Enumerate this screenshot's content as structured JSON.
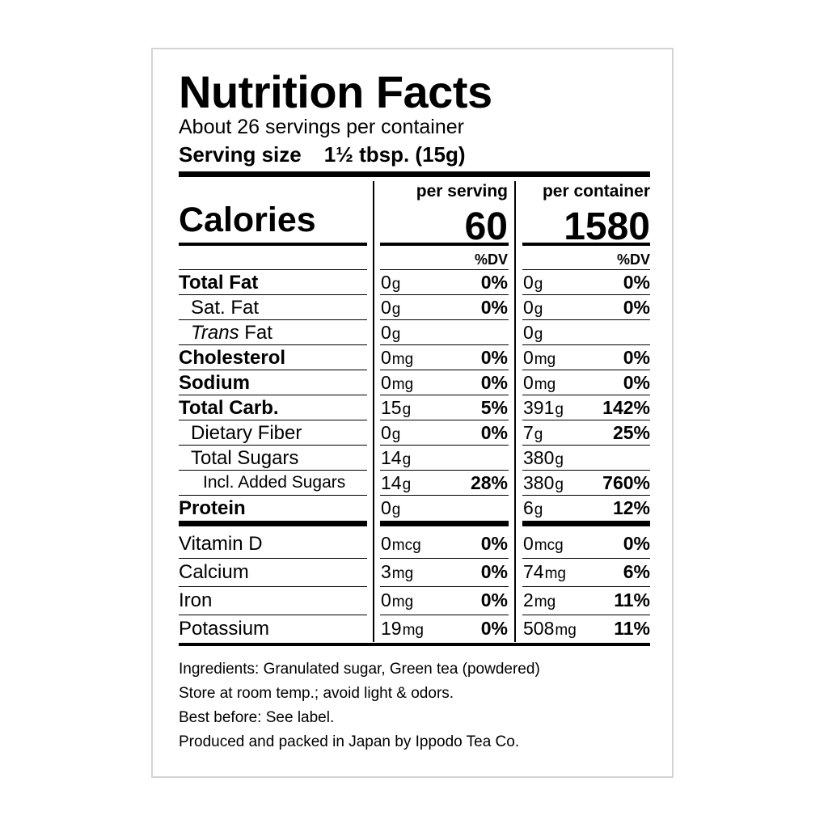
{
  "title": "Nutrition Facts",
  "servings_per_container": "About 26 servings per container",
  "serving_size": {
    "label": "Serving size",
    "value": "1½ tbsp. (15g)"
  },
  "columns": {
    "per_serving": "per serving",
    "per_container": "per container",
    "dv": "%DV"
  },
  "calories": {
    "label": "Calories",
    "per_serving": "60",
    "per_container": "1580"
  },
  "nutrients": [
    {
      "label": "Total Fat",
      "bold": true,
      "indent": 0,
      "s_amt": "0",
      "s_unit": "g",
      "s_pct": "0%",
      "c_amt": "0",
      "c_unit": "g",
      "c_pct": "0%"
    },
    {
      "label": "Sat. Fat",
      "bold": false,
      "indent": 1,
      "s_amt": "0",
      "s_unit": "g",
      "s_pct": "0%",
      "c_amt": "0",
      "c_unit": "g",
      "c_pct": "0%"
    },
    {
      "label_italic": "Trans",
      "label": " Fat",
      "bold": false,
      "indent": 1,
      "s_amt": "0",
      "s_unit": "g",
      "s_pct": "",
      "c_amt": "0",
      "c_unit": "g",
      "c_pct": ""
    },
    {
      "label": "Cholesterol",
      "bold": true,
      "indent": 0,
      "s_amt": "0",
      "s_unit": "mg",
      "s_pct": "0%",
      "c_amt": "0",
      "c_unit": "mg",
      "c_pct": "0%"
    },
    {
      "label": "Sodium",
      "bold": true,
      "indent": 0,
      "s_amt": "0",
      "s_unit": "mg",
      "s_pct": "0%",
      "c_amt": "0",
      "c_unit": "mg",
      "c_pct": "0%"
    },
    {
      "label": "Total Carb.",
      "bold": true,
      "indent": 0,
      "s_amt": "15",
      "s_unit": "g",
      "s_pct": "5%",
      "c_amt": "391",
      "c_unit": "g",
      "c_pct": "142%"
    },
    {
      "label": "Dietary Fiber",
      "bold": false,
      "indent": 1,
      "s_amt": "0",
      "s_unit": "g",
      "s_pct": "0%",
      "c_amt": "7",
      "c_unit": "g",
      "c_pct": "25%"
    },
    {
      "label": "Total Sugars",
      "bold": false,
      "indent": 1,
      "s_amt": "14",
      "s_unit": "g",
      "s_pct": "",
      "c_amt": "380",
      "c_unit": "g",
      "c_pct": ""
    },
    {
      "label": "Incl. Added Sugars",
      "bold": false,
      "indent": 2,
      "s_amt": "14",
      "s_unit": "g",
      "s_pct": "28%",
      "c_amt": "380",
      "c_unit": "g",
      "c_pct": "760%"
    },
    {
      "label": "Protein",
      "bold": true,
      "indent": 0,
      "s_amt": "0",
      "s_unit": "g",
      "s_pct": "",
      "c_amt": "6",
      "c_unit": "g",
      "c_pct": "12%"
    }
  ],
  "vitamins": [
    {
      "label": "Vitamin D",
      "s_amt": "0",
      "s_unit": "mcg",
      "s_pct": "0%",
      "c_amt": "0",
      "c_unit": "mcg",
      "c_pct": "0%"
    },
    {
      "label": "Calcium",
      "s_amt": "3",
      "s_unit": "mg",
      "s_pct": "0%",
      "c_amt": "74",
      "c_unit": "mg",
      "c_pct": "6%"
    },
    {
      "label": "Iron",
      "s_amt": "0",
      "s_unit": "mg",
      "s_pct": "0%",
      "c_amt": "2",
      "c_unit": "mg",
      "c_pct": "11%"
    },
    {
      "label": "Potassium",
      "s_amt": "19",
      "s_unit": "mg",
      "s_pct": "0%",
      "c_amt": "508",
      "c_unit": "mg",
      "c_pct": "11%"
    }
  ],
  "footer": [
    "Ingredients: Granulated sugar, Green tea (powdered)",
    "Store at room temp.; avoid light & odors.",
    "Best before: See label.",
    "Produced and packed in Japan by Ippodo Tea Co."
  ]
}
